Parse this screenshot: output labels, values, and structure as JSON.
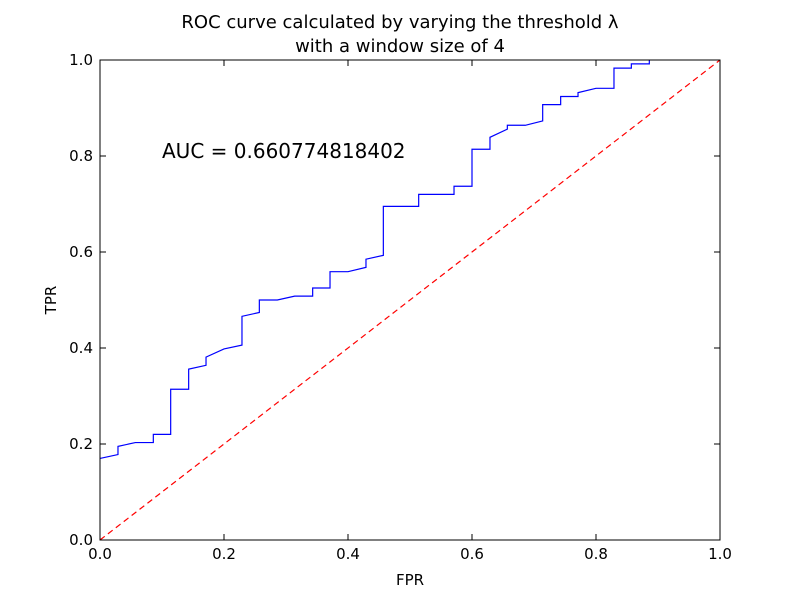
{
  "chart_data": {
    "type": "line",
    "title_line1": "ROC curve calculated by varying the threshold λ",
    "title_line2": "with a window size of 4",
    "xlabel": "FPR",
    "ylabel": "TPR",
    "xlim": [
      0.0,
      1.0
    ],
    "ylim": [
      0.0,
      1.0
    ],
    "xticks": [
      "0.0",
      "0.2",
      "0.4",
      "0.6",
      "0.8",
      "1.0"
    ],
    "yticks": [
      "0.0",
      "0.2",
      "0.4",
      "0.6",
      "0.8",
      "1.0"
    ],
    "grid": false,
    "annotation": {
      "text": "AUC = 0.660774818402",
      "x": 0.1,
      "y": 0.8
    },
    "series": [
      {
        "style": "solid",
        "color": "#0000ff",
        "x": [
          0.0,
          0.029,
          0.029,
          0.057,
          0.086,
          0.086,
          0.114,
          0.114,
          0.143,
          0.143,
          0.171,
          0.171,
          0.2,
          0.229,
          0.229,
          0.257,
          0.257,
          0.286,
          0.314,
          0.343,
          0.343,
          0.371,
          0.371,
          0.4,
          0.429,
          0.429,
          0.457,
          0.457,
          0.514,
          0.514,
          0.571,
          0.571,
          0.6,
          0.6,
          0.629,
          0.629,
          0.657,
          0.657,
          0.686,
          0.714,
          0.714,
          0.743,
          0.743,
          0.771,
          0.771,
          0.8,
          0.829,
          0.829,
          0.857,
          0.857,
          0.886,
          0.886
        ],
        "y": [
          0.17,
          0.178,
          0.195,
          0.203,
          0.203,
          0.22,
          0.22,
          0.314,
          0.314,
          0.356,
          0.364,
          0.381,
          0.398,
          0.406,
          0.466,
          0.474,
          0.5,
          0.5,
          0.508,
          0.508,
          0.525,
          0.525,
          0.559,
          0.559,
          0.568,
          0.585,
          0.593,
          0.695,
          0.695,
          0.72,
          0.72,
          0.737,
          0.737,
          0.814,
          0.814,
          0.839,
          0.856,
          0.864,
          0.864,
          0.873,
          0.907,
          0.907,
          0.924,
          0.924,
          0.932,
          0.941,
          0.941,
          0.983,
          0.983,
          0.992,
          0.992,
          1.0
        ]
      },
      {
        "style": "dashed",
        "color": "#ff0000",
        "x": [
          0.0,
          1.0
        ],
        "y": [
          0.0,
          1.0
        ]
      }
    ]
  }
}
